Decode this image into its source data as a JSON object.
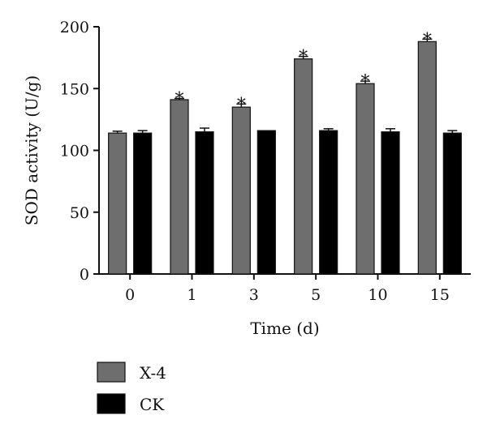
{
  "chart_data": {
    "type": "bar",
    "xlabel": "Time (d)",
    "ylabel": "SOD activity (U/g)",
    "categories": [
      "0",
      "1",
      "3",
      "5",
      "10",
      "15"
    ],
    "ylim": [
      0,
      200
    ],
    "yticks": [
      0,
      50,
      100,
      150,
      200
    ],
    "legend_position": "bottom-left",
    "series": [
      {
        "name": "X-4",
        "color": "#6e6e6e",
        "values": [
          114,
          141,
          135,
          174,
          154,
          188
        ],
        "errors": [
          1.5,
          1,
          2.5,
          2,
          2,
          2
        ],
        "significance": [
          "",
          "*",
          "*",
          "*",
          "*",
          "*"
        ]
      },
      {
        "name": "CK",
        "color": "#000000",
        "values": [
          114,
          115,
          116,
          116,
          115,
          114
        ],
        "errors": [
          2,
          3,
          0,
          1.5,
          2.5,
          2
        ],
        "significance": [
          "",
          "",
          "",
          "",
          "",
          ""
        ]
      }
    ]
  }
}
